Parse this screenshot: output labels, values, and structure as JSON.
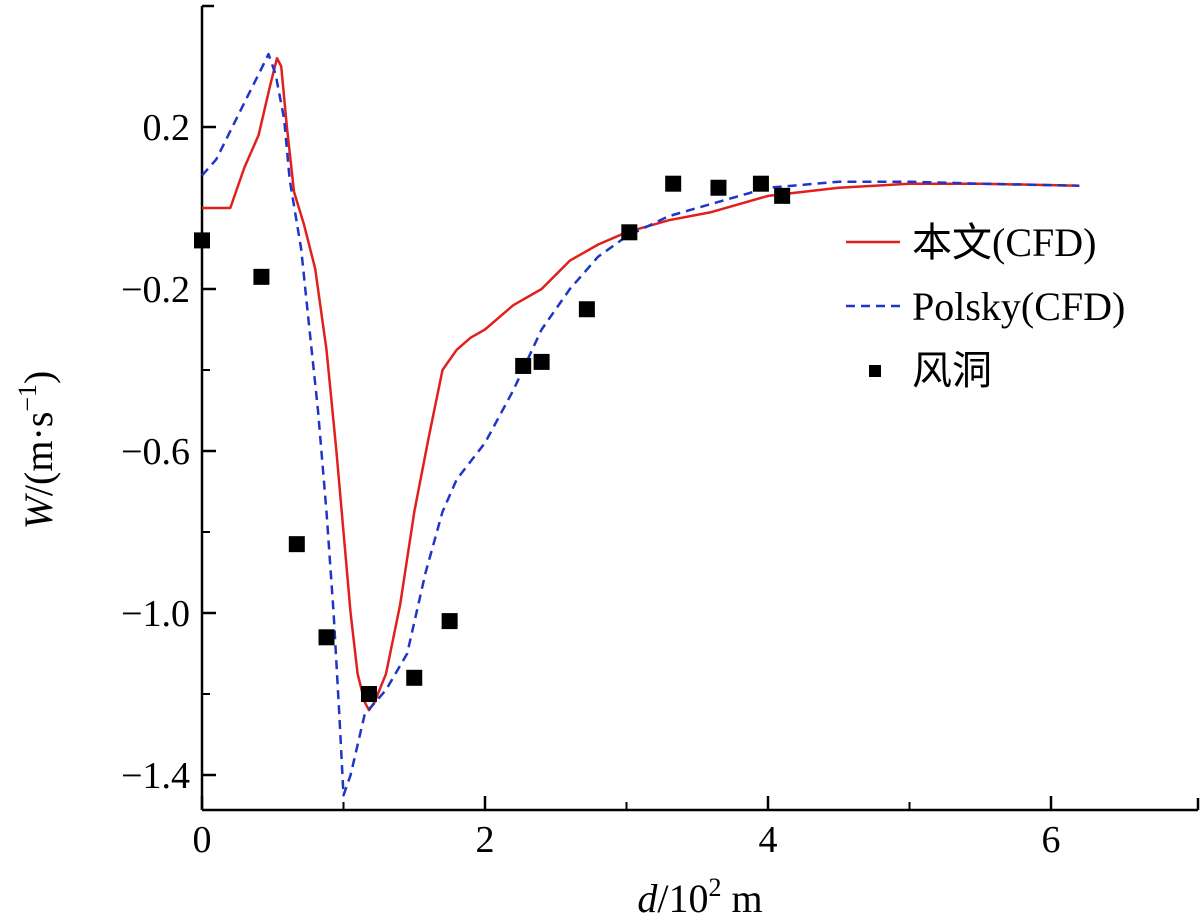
{
  "chart_data": {
    "type": "line",
    "xlabel": {
      "var": "d",
      "sep": "/",
      "unit_pre": "10",
      "unit_exp": "2",
      "unit_post": " m"
    },
    "ylabel": {
      "var": "W",
      "sep": "/",
      "unit_pre": "(m·s",
      "unit_exp": "−1",
      "unit_post": ")"
    },
    "xlim": [
      0,
      7
    ],
    "ylim": [
      -1.48,
      0.5
    ],
    "x_ticks": [
      {
        "v": 0,
        "label": "0"
      },
      {
        "v": 2,
        "label": "2"
      },
      {
        "v": 4,
        "label": "4"
      },
      {
        "v": 6,
        "label": "6"
      }
    ],
    "y_ticks": [
      {
        "v": 0.2,
        "label": "0.2"
      },
      {
        "v": -0.2,
        "label": "−0.2"
      },
      {
        "v": -0.6,
        "label": "−0.6"
      },
      {
        "v": -1.0,
        "label": "−1.0"
      },
      {
        "v": -1.4,
        "label": "−1.4"
      }
    ],
    "legend_position": "right",
    "grid": false,
    "series": [
      {
        "name": "本文(CFD)",
        "style": "solid",
        "color": "#e0201e",
        "points": [
          [
            0,
            0
          ],
          [
            0.2,
            0.0
          ],
          [
            0.3,
            0.1
          ],
          [
            0.4,
            0.18
          ],
          [
            0.48,
            0.3
          ],
          [
            0.53,
            0.37
          ],
          [
            0.56,
            0.35
          ],
          [
            0.6,
            0.2
          ],
          [
            0.65,
            0.04
          ],
          [
            0.72,
            -0.04
          ],
          [
            0.8,
            -0.15
          ],
          [
            0.88,
            -0.35
          ],
          [
            0.95,
            -0.6
          ],
          [
            1.0,
            -0.8
          ],
          [
            1.05,
            -1.0
          ],
          [
            1.1,
            -1.15
          ],
          [
            1.15,
            -1.22
          ],
          [
            1.18,
            -1.24
          ],
          [
            1.22,
            -1.22
          ],
          [
            1.3,
            -1.15
          ],
          [
            1.4,
            -0.98
          ],
          [
            1.5,
            -0.75
          ],
          [
            1.6,
            -0.57
          ],
          [
            1.7,
            -0.4
          ],
          [
            1.8,
            -0.35
          ],
          [
            1.9,
            -0.32
          ],
          [
            2.0,
            -0.3
          ],
          [
            2.2,
            -0.24
          ],
          [
            2.4,
            -0.2
          ],
          [
            2.6,
            -0.13
          ],
          [
            2.8,
            -0.09
          ],
          [
            3.0,
            -0.06
          ],
          [
            3.3,
            -0.03
          ],
          [
            3.6,
            -0.01
          ],
          [
            4.0,
            0.03
          ],
          [
            4.5,
            0.05
          ],
          [
            5.0,
            0.06
          ],
          [
            5.5,
            0.06
          ],
          [
            6.2,
            0.055
          ]
        ]
      },
      {
        "name": "Polsky(CFD)",
        "style": "dashed",
        "color": "#1f35c8",
        "points": [
          [
            0,
            0.08
          ],
          [
            0.1,
            0.12
          ],
          [
            0.2,
            0.19
          ],
          [
            0.3,
            0.26
          ],
          [
            0.4,
            0.33
          ],
          [
            0.47,
            0.38
          ],
          [
            0.52,
            0.33
          ],
          [
            0.58,
            0.22
          ],
          [
            0.62,
            0.07
          ],
          [
            0.7,
            -0.1
          ],
          [
            0.76,
            -0.3
          ],
          [
            0.82,
            -0.5
          ],
          [
            0.88,
            -0.75
          ],
          [
            0.93,
            -1.0
          ],
          [
            0.97,
            -1.25
          ],
          [
            1.0,
            -1.45
          ],
          [
            1.05,
            -1.4
          ],
          [
            1.15,
            -1.25
          ],
          [
            1.3,
            -1.19
          ],
          [
            1.45,
            -1.1
          ],
          [
            1.58,
            -0.9
          ],
          [
            1.7,
            -0.75
          ],
          [
            1.8,
            -0.67
          ],
          [
            2.0,
            -0.58
          ],
          [
            2.2,
            -0.45
          ],
          [
            2.4,
            -0.3
          ],
          [
            2.6,
            -0.2
          ],
          [
            2.8,
            -0.12
          ],
          [
            3.0,
            -0.07
          ],
          [
            3.3,
            -0.02
          ],
          [
            3.6,
            0.01
          ],
          [
            4.0,
            0.05
          ],
          [
            4.5,
            0.065
          ],
          [
            5.0,
            0.065
          ],
          [
            5.5,
            0.06
          ],
          [
            6.2,
            0.055
          ]
        ]
      },
      {
        "name": "风洞",
        "style": "markers",
        "color": "#000000",
        "points": [
          [
            0.0,
            -0.08
          ],
          [
            0.42,
            -0.17
          ],
          [
            0.67,
            -0.83
          ],
          [
            0.88,
            -1.06
          ],
          [
            1.18,
            -1.2
          ],
          [
            1.5,
            -1.16
          ],
          [
            1.75,
            -1.02
          ],
          [
            2.27,
            -0.39
          ],
          [
            2.4,
            -0.38
          ],
          [
            2.72,
            -0.25
          ],
          [
            3.02,
            -0.06
          ],
          [
            3.33,
            0.06
          ],
          [
            3.65,
            0.05
          ],
          [
            3.95,
            0.06
          ],
          [
            4.1,
            0.03
          ]
        ]
      }
    ]
  }
}
